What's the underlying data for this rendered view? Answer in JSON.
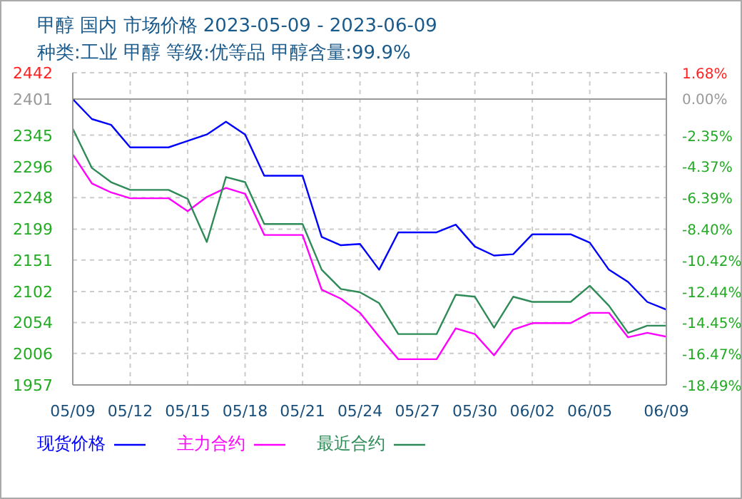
{
  "chart_data": {
    "type": "line",
    "title": "甲醇 国内 市场价格 2023-05-09 - 2023-06-09",
    "subtitle": "种类:工业 甲醇 等级:优等品 甲醇含量:99.9%",
    "x": [
      "2023-05-09",
      "2023-05-10",
      "2023-05-11",
      "2023-05-12",
      "2023-05-13",
      "2023-05-14",
      "2023-05-15",
      "2023-05-16",
      "2023-05-17",
      "2023-05-18",
      "2023-05-19",
      "2023-05-20",
      "2023-05-21",
      "2023-05-22",
      "2023-05-23",
      "2023-05-24",
      "2023-05-25",
      "2023-05-26",
      "2023-05-27",
      "2023-05-28",
      "2023-05-29",
      "2023-05-30",
      "2023-05-31",
      "2023-06-01",
      "2023-06-02",
      "2023-06-03",
      "2023-06-04",
      "2023-06-05",
      "2023-06-06",
      "2023-06-07",
      "2023-06-08",
      "2023-06-09"
    ],
    "series": [
      {
        "name": "现货价格",
        "color": "#0000ff",
        "values": [
          2401,
          2370,
          2361,
          2326,
          2326,
          2326,
          2336,
          2346,
          2366,
          2346,
          2282,
          2282,
          2282,
          2187,
          2174,
          2176,
          2136,
          2194,
          2194,
          2194,
          2206,
          2172,
          2158,
          2160,
          2191,
          2191,
          2191,
          2178,
          2136,
          2117,
          2086,
          2074
        ]
      },
      {
        "name": "主力合约",
        "color": "#ff00ff",
        "values": [
          2315,
          2270,
          2256,
          2247,
          2247,
          2247,
          2227,
          2249,
          2263,
          2254,
          2190,
          2190,
          2190,
          2105,
          2091,
          2069,
          2032,
          1997,
          1997,
          1997,
          2045,
          2036,
          2003,
          2043,
          2053,
          2053,
          2053,
          2069,
          2069,
          2031,
          2038,
          2032
        ]
      },
      {
        "name": "最近合约",
        "color": "#2e8b57",
        "values": [
          2355,
          2294,
          2272,
          2260,
          2260,
          2260,
          2246,
          2179,
          2280,
          2272,
          2207,
          2207,
          2207,
          2136,
          2106,
          2101,
          2084,
          2036,
          2036,
          2036,
          2097,
          2094,
          2046,
          2094,
          2086,
          2086,
          2086,
          2111,
          2080,
          2038,
          2049,
          2049
        ]
      }
    ],
    "xlim": [
      "2023-05-09",
      "2023-06-09"
    ],
    "xticks": [
      {
        "value": "2023-05-09",
        "label": "05/09"
      },
      {
        "value": "2023-05-12",
        "label": "05/12"
      },
      {
        "value": "2023-05-15",
        "label": "05/15"
      },
      {
        "value": "2023-05-18",
        "label": "05/18"
      },
      {
        "value": "2023-05-21",
        "label": "05/21"
      },
      {
        "value": "2023-05-24",
        "label": "05/24"
      },
      {
        "value": "2023-05-27",
        "label": "05/27"
      },
      {
        "value": "2023-05-30",
        "label": "05/30"
      },
      {
        "value": "2023-06-02",
        "label": "06/02"
      },
      {
        "value": "2023-06-05",
        "label": "06/05"
      },
      {
        "value": "2023-06-09",
        "label": "06/09"
      }
    ],
    "ylim": [
      1957,
      2442
    ],
    "yticks": [
      1957,
      2006,
      2054,
      2102,
      2151,
      2199,
      2248,
      2296,
      2345,
      2401,
      2442
    ],
    "y2lim": [
      -18.49,
      1.68
    ],
    "y2ticks": [
      {
        "value": -18.49,
        "label": "-18.49%"
      },
      {
        "value": -16.47,
        "label": "-16.47%"
      },
      {
        "value": -14.45,
        "label": "-14.45%"
      },
      {
        "value": -12.44,
        "label": "-12.44%"
      },
      {
        "value": -10.42,
        "label": "-10.42%"
      },
      {
        "value": -8.4,
        "label": "-8.40%"
      },
      {
        "value": -6.39,
        "label": "-6.39%"
      },
      {
        "value": -4.37,
        "label": "-4.37%"
      },
      {
        "value": -2.35,
        "label": "-2.35%"
      },
      {
        "value": 0,
        "label": "0.00%"
      },
      {
        "value": 1.68,
        "label": "1.68%"
      }
    ],
    "ref_lines": [
      {
        "axis": "y",
        "value": 2401,
        "color": "#999999"
      }
    ],
    "grid": true,
    "legend": "bottom",
    "marker": "none",
    "line_style": "solid"
  }
}
